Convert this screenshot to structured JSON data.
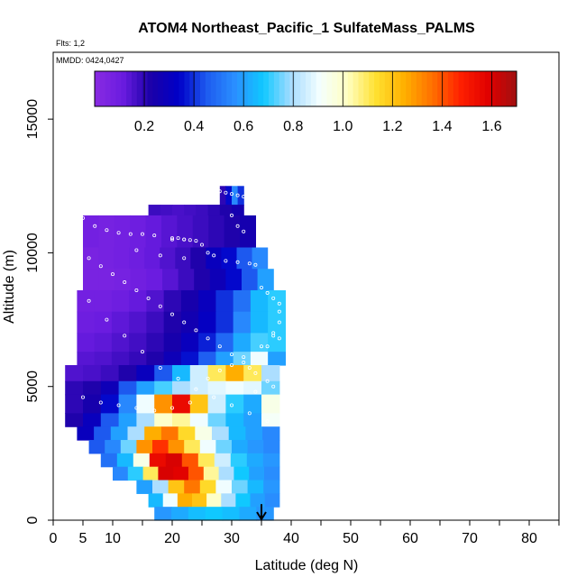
{
  "chart_data": {
    "type": "heatmap",
    "title": "ATOM4 Northeast_Pacific_1 SulfateMass_PALMS",
    "flights_note": "Flts: 1,2",
    "dates_note": "MMDD: 0424,0427",
    "xlabel": "Latitude (deg N)",
    "ylabel": "Altitude (m)",
    "xlim": [
      0,
      85
    ],
    "ylim": [
      0,
      17500
    ],
    "x_ticks": [
      0,
      5,
      10,
      20,
      30,
      40,
      50,
      60,
      70,
      80
    ],
    "y_ticks": [
      0,
      5000,
      10000,
      15000
    ],
    "colorbar": {
      "range": [
        0,
        1.7
      ],
      "ticks": [
        0.2,
        0.4,
        0.6,
        0.8,
        1.0,
        1.2,
        1.4,
        1.6
      ],
      "tick_labels": [
        "0.2",
        "0.4",
        "0.6",
        "0.8",
        "1.0",
        "1.2",
        "1.4",
        "1.6"
      ],
      "colors": [
        "#8a2be2",
        "#6a1ce0",
        "#1a00a8",
        "#0000c8",
        "#1e5cf0",
        "#2a90ff",
        "#10c8ff",
        "#a8dcff",
        "#f4ffff",
        "#ffffc0",
        "#ffe030",
        "#ffb000",
        "#ff7000",
        "#ff2000",
        "#e00000",
        "#a01010"
      ]
    },
    "altitude_bands": [
      {
        "alt": [
          11800,
          12500
        ],
        "lat": [
          28,
          32
        ],
        "v": [
          0.2,
          0.35,
          0.55,
          0.4
        ]
      },
      {
        "alt": [
          11000,
          11800
        ],
        "lat": [
          16,
          32
        ],
        "v": [
          0.18,
          0.17,
          0.16,
          0.17,
          0.18,
          0.2,
          0.22,
          0.25
        ]
      },
      {
        "alt": [
          10200,
          11400
        ],
        "lat": [
          5,
          34
        ],
        "v": [
          0.08,
          0.07,
          0.08,
          0.1,
          0.12,
          0.14,
          0.16,
          0.18,
          0.2,
          0.22,
          0.25
        ]
      },
      {
        "alt": [
          9400,
          10200
        ],
        "lat": [
          5,
          36
        ],
        "v": [
          0.06,
          0.07,
          0.08,
          0.1,
          0.12,
          0.15,
          0.18,
          0.22,
          0.3,
          0.35,
          0.45,
          0.55
        ]
      },
      {
        "alt": [
          8600,
          9400
        ],
        "lat": [
          5,
          37
        ],
        "v": [
          0.06,
          0.06,
          0.07,
          0.09,
          0.11,
          0.14,
          0.18,
          0.22,
          0.28,
          0.35,
          0.45,
          0.6
        ]
      },
      {
        "alt": [
          7800,
          8600
        ],
        "lat": [
          4,
          39
        ],
        "v": [
          0.08,
          0.08,
          0.1,
          0.12,
          0.15,
          0.2,
          0.24,
          0.3,
          0.4,
          0.5,
          0.65,
          0.7
        ]
      },
      {
        "alt": [
          7000,
          7800
        ],
        "lat": [
          4,
          39
        ],
        "v": [
          0.1,
          0.11,
          0.13,
          0.15,
          0.18,
          0.22,
          0.26,
          0.32,
          0.4,
          0.55,
          0.65,
          0.7
        ]
      },
      {
        "alt": [
          6300,
          7000
        ],
        "lat": [
          4,
          39
        ],
        "v": [
          0.12,
          0.13,
          0.15,
          0.17,
          0.2,
          0.24,
          0.3,
          0.38,
          0.48,
          0.62,
          0.72,
          0.7
        ]
      },
      {
        "alt": [
          5800,
          6300
        ],
        "lat": [
          4,
          39
        ],
        "v": [
          0.14,
          0.15,
          0.17,
          0.19,
          0.22,
          0.28,
          0.36,
          0.46,
          0.6,
          0.75,
          0.9,
          0.6
        ]
      },
      {
        "alt": [
          5200,
          5800
        ],
        "lat": [
          2,
          38
        ],
        "v": [
          0.15,
          0.16,
          0.18,
          0.22,
          0.3,
          0.45,
          0.65,
          0.85,
          1.1,
          1.25,
          1.1,
          0.8
        ]
      },
      {
        "alt": [
          4700,
          5200
        ],
        "lat": [
          2,
          38
        ],
        "v": [
          0.2,
          0.22,
          0.28,
          0.45,
          0.6,
          0.72,
          0.8,
          0.85,
          0.88,
          0.9,
          0.88,
          0.75
        ]
      },
      {
        "alt": [
          4000,
          4700
        ],
        "lat": [
          2,
          38
        ],
        "v": [
          0.2,
          0.24,
          0.35,
          0.55,
          0.9,
          1.3,
          1.55,
          1.2,
          0.85,
          0.7,
          0.62,
          0.95
        ]
      },
      {
        "alt": [
          3500,
          4000
        ],
        "lat": [
          2,
          38
        ],
        "v": [
          0.22,
          0.3,
          0.45,
          0.6,
          0.8,
          1.0,
          1.05,
          0.9,
          0.75,
          0.65,
          0.6,
          0.92
        ]
      },
      {
        "alt": [
          3000,
          3500
        ],
        "lat": [
          4,
          38
        ],
        "v": [
          0.3,
          0.45,
          0.6,
          0.8,
          1.25,
          1.35,
          1.15,
          0.95,
          0.8,
          0.65,
          0.6,
          0.55
        ]
      },
      {
        "alt": [
          2500,
          3000
        ],
        "lat": [
          6,
          38
        ],
        "v": [
          0.45,
          0.55,
          0.75,
          1.3,
          1.45,
          1.3,
          1.1,
          0.9,
          0.75,
          0.62,
          0.58,
          0.55
        ]
      },
      {
        "alt": [
          2000,
          2500
        ],
        "lat": [
          8,
          38
        ],
        "v": [
          0.5,
          0.65,
          0.95,
          1.55,
          1.6,
          1.4,
          1.1,
          0.85,
          0.7,
          0.62,
          0.58
        ]
      },
      {
        "alt": [
          1500,
          2000
        ],
        "lat": [
          10,
          38
        ],
        "v": [
          0.55,
          0.7,
          1.1,
          1.6,
          1.58,
          1.4,
          1.05,
          0.8,
          0.68,
          0.6,
          0.56
        ]
      },
      {
        "alt": [
          1000,
          1500
        ],
        "lat": [
          14,
          38
        ],
        "v": [
          0.6,
          0.8,
          1.2,
          1.35,
          1.15,
          0.9,
          0.75,
          0.65,
          0.58
        ]
      },
      {
        "alt": [
          500,
          1000
        ],
        "lat": [
          16,
          38
        ],
        "v": [
          0.65,
          0.9,
          1.25,
          1.2,
          1.0,
          0.8,
          0.68,
          0.6,
          0.56
        ]
      },
      {
        "alt": [
          0,
          500
        ],
        "lat": [
          17,
          37
        ],
        "v": [
          0.58,
          0.62,
          0.66,
          0.68,
          0.66,
          0.62,
          0.58
        ]
      }
    ],
    "flight_track_points": [
      [
        5,
        11300
      ],
      [
        7,
        11000
      ],
      [
        9,
        10850
      ],
      [
        11,
        10750
      ],
      [
        13,
        10700
      ],
      [
        15,
        10700
      ],
      [
        17,
        10650
      ],
      [
        20,
        10550
      ],
      [
        22,
        10500
      ],
      [
        25,
        10300
      ],
      [
        27,
        9900
      ],
      [
        29,
        9700
      ],
      [
        31,
        9650
      ],
      [
        33,
        9600
      ],
      [
        34,
        9550
      ],
      [
        35,
        8700
      ],
      [
        36,
        8500
      ],
      [
        37,
        8300
      ],
      [
        28,
        12300
      ],
      [
        29,
        12250
      ],
      [
        30,
        12200
      ],
      [
        31,
        12150
      ],
      [
        32,
        12100
      ],
      [
        6,
        9800
      ],
      [
        8,
        9500
      ],
      [
        10,
        9200
      ],
      [
        12,
        8900
      ],
      [
        14,
        8600
      ],
      [
        16,
        8300
      ],
      [
        18,
        8000
      ],
      [
        20,
        7700
      ],
      [
        22,
        7400
      ],
      [
        24,
        7100
      ],
      [
        26,
        6800
      ],
      [
        28,
        6500
      ],
      [
        30,
        6200
      ],
      [
        32,
        5900
      ],
      [
        33,
        5700
      ],
      [
        34,
        5500
      ],
      [
        6,
        8200
      ],
      [
        9,
        7500
      ],
      [
        12,
        6900
      ],
      [
        15,
        6300
      ],
      [
        18,
        5700
      ],
      [
        21,
        5300
      ],
      [
        24,
        4900
      ],
      [
        27,
        4600
      ],
      [
        30,
        4300
      ],
      [
        33,
        4000
      ],
      [
        36,
        3700
      ],
      [
        5,
        4600
      ],
      [
        8,
        4400
      ],
      [
        11,
        4300
      ],
      [
        14,
        4200
      ],
      [
        17,
        4100
      ],
      [
        20,
        4200
      ],
      [
        23,
        4400
      ],
      [
        26,
        5300
      ],
      [
        28,
        5600
      ],
      [
        30,
        5800
      ],
      [
        32,
        6100
      ],
      [
        35,
        6500
      ],
      [
        37,
        7000
      ],
      [
        38,
        7400
      ],
      [
        38,
        7800
      ],
      [
        38,
        8100
      ],
      [
        36,
        6500
      ],
      [
        37,
        6900
      ],
      [
        38,
        6800
      ],
      [
        36,
        5200
      ],
      [
        37,
        5000
      ],
      [
        34,
        4800
      ],
      [
        20,
        10500
      ],
      [
        21,
        10550
      ],
      [
        22,
        10500
      ],
      [
        23,
        10480
      ],
      [
        24,
        10450
      ],
      [
        14,
        10100
      ],
      [
        18,
        9900
      ],
      [
        22,
        9800
      ],
      [
        26,
        10000
      ],
      [
        30,
        11400
      ],
      [
        31,
        11000
      ],
      [
        32,
        10800
      ]
    ],
    "latitude_marker": {
      "lat": 35,
      "alt_top": 600,
      "alt_bottom": 0
    }
  }
}
